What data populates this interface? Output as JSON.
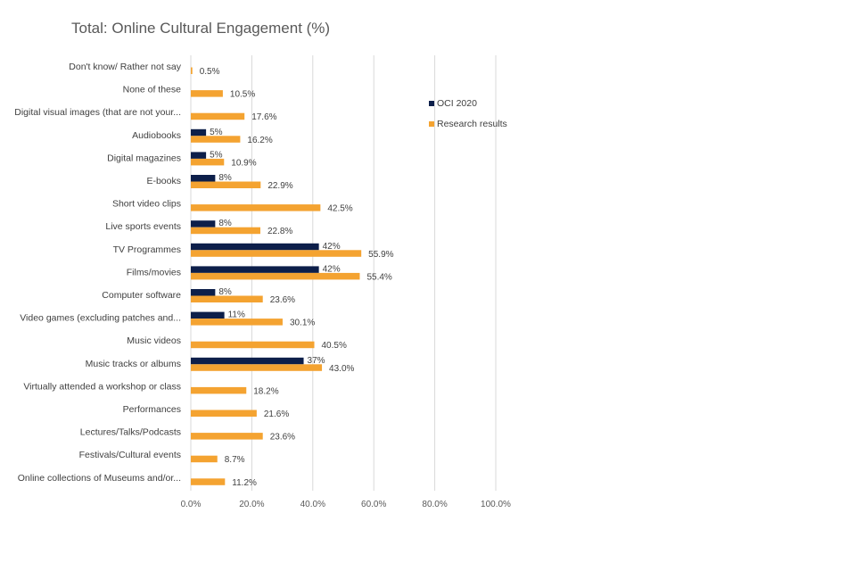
{
  "chart_data": {
    "type": "bar",
    "orientation": "horizontal",
    "title": "Total: Online Cultural Engagement (%)",
    "xlabel": "",
    "ylabel": "",
    "xlim": [
      0,
      100
    ],
    "x_ticks": [
      "0.0%",
      "20.0%",
      "40.0%",
      "60.0%",
      "80.0%",
      "100.0%"
    ],
    "grid": true,
    "legend_position": "right",
    "categories": [
      "Don't know/ Rather not say",
      "None of these",
      "Digital visual images (that are not your...",
      "Audiobooks",
      "Digital magazines",
      "E-books",
      "Short video clips",
      "Live sports events",
      "TV Programmes",
      "Films/movies",
      "Computer software",
      "Video games (excluding patches and...",
      "Music videos",
      "Music tracks or albums",
      "Virtually attended a workshop or class",
      "Performances",
      "Lectures/Talks/Podcasts",
      "Festivals/Cultural events",
      "Online collections of Museums and/or..."
    ],
    "series": [
      {
        "name": "OCI 2020",
        "color": "#0d1f4a",
        "values": [
          null,
          null,
          null,
          5,
          5,
          8,
          null,
          8,
          42,
          42,
          8,
          11,
          null,
          37,
          null,
          null,
          null,
          null,
          null
        ],
        "labels": [
          "",
          "",
          "",
          "5%",
          "5%",
          "8%",
          "",
          "8%",
          "42%",
          "42%",
          "8%",
          "11%",
          "",
          "37%",
          "",
          "",
          "",
          "",
          ""
        ]
      },
      {
        "name": "Research results",
        "color": "#f4a331",
        "values": [
          0.5,
          10.5,
          17.6,
          16.2,
          10.9,
          22.9,
          42.5,
          22.8,
          55.9,
          55.4,
          23.6,
          30.1,
          40.5,
          43.0,
          18.2,
          21.6,
          23.6,
          8.7,
          11.2
        ],
        "labels": [
          "0.5%",
          "10.5%",
          "17.6%",
          "16.2%",
          "10.9%",
          "22.9%",
          "42.5%",
          "22.8%",
          "55.9%",
          "55.4%",
          "23.6%",
          "30.1%",
          "40.5%",
          "43.0%",
          "18.2%",
          "21.6%",
          "23.6%",
          "8.7%",
          "11.2%"
        ]
      }
    ]
  }
}
